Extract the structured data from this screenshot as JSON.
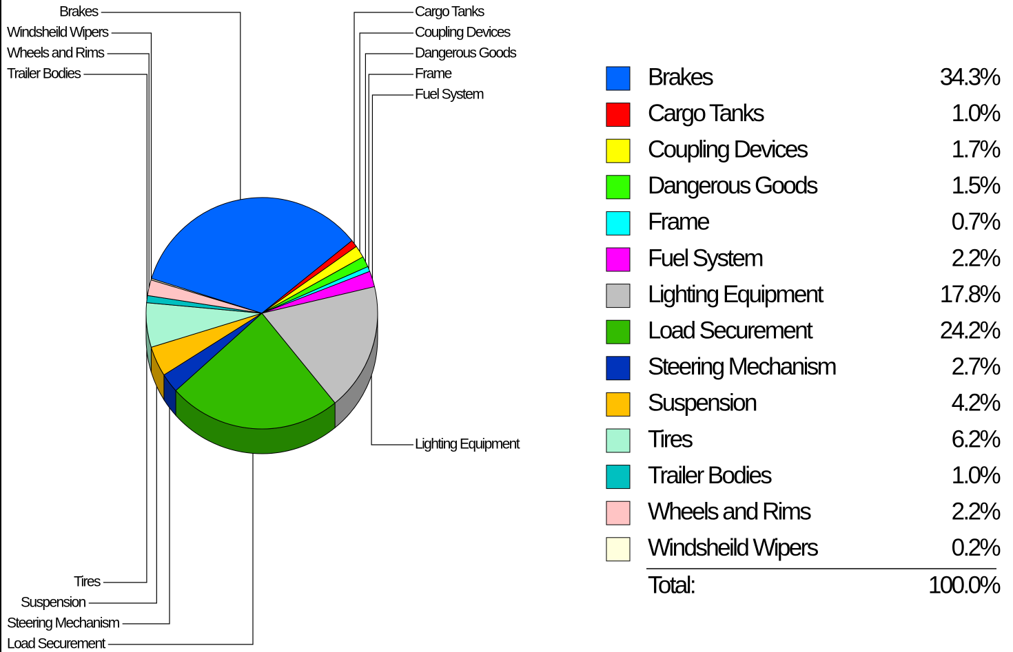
{
  "chart_data": {
    "type": "pie",
    "categories": [
      "Brakes",
      "Cargo Tanks",
      "Coupling Devices",
      "Dangerous Goods",
      "Frame",
      "Fuel System",
      "Lighting Equipment",
      "Load Securement",
      "Steering Mechanism",
      "Suspension",
      "Tires",
      "Trailer Bodies",
      "Wheels and Rims",
      "Windsheild Wipers"
    ],
    "values": [
      34.3,
      1.0,
      1.7,
      1.5,
      0.7,
      2.2,
      17.8,
      24.2,
      2.7,
      4.2,
      6.2,
      1.0,
      2.2,
      0.2
    ],
    "value_labels": [
      "34.3%",
      "1.0%",
      "1.7%",
      "1.5%",
      "0.7%",
      "2.2%",
      "17.8%",
      "24.2%",
      "2.7%",
      "4.2%",
      "6.2%",
      "1.0%",
      "2.2%",
      "0.2%"
    ],
    "colors": [
      "#0066ff",
      "#ff0000",
      "#ffff00",
      "#33ff00",
      "#00ffff",
      "#ff00ff",
      "#c0c0c0",
      "#33bb00",
      "#0033bb",
      "#ffc000",
      "#a8f5d2",
      "#00c0c0",
      "#ffc4c4",
      "#ffffdd"
    ],
    "total_label": "Total:",
    "total_value_label": "100.0%"
  }
}
